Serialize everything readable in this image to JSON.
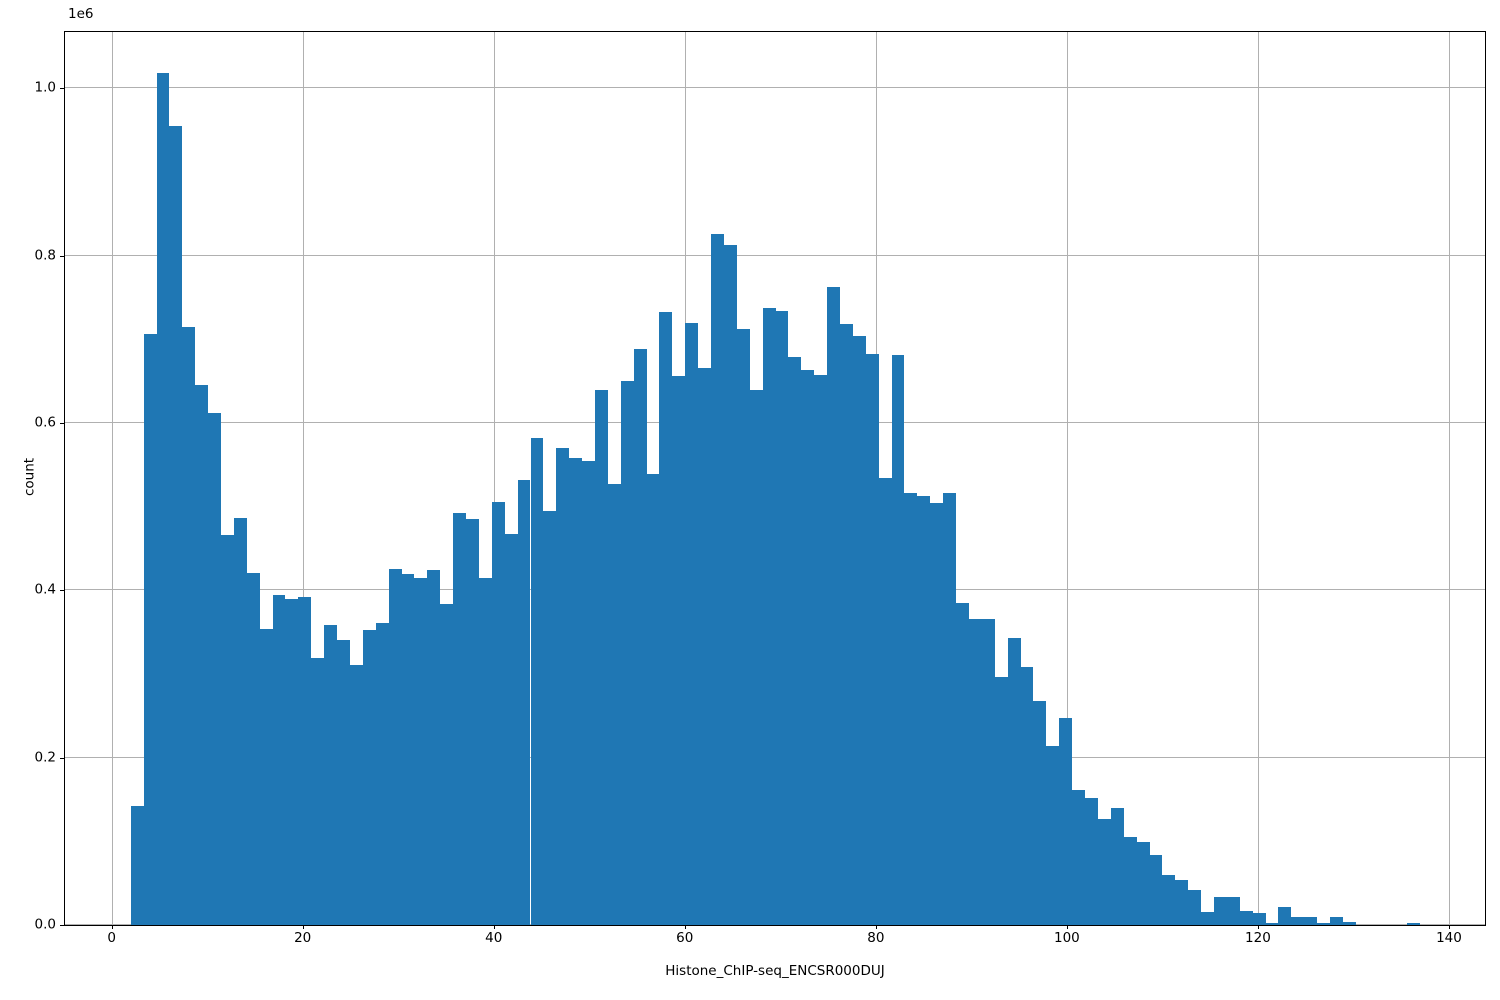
{
  "chart_data": {
    "type": "bar",
    "subtype": "histogram",
    "title": "",
    "xlabel": "Histone_ChIP-seq_ENCSR000DUJ",
    "ylabel": "count",
    "offset_text": "1e6",
    "bar_color": "#1f77b4",
    "grid_color": "#b0b0b0",
    "spine_color": "#000000",
    "background_color": "#ffffff",
    "grid": true,
    "legend": false,
    "bin_start": 2.0,
    "bin_width": 1.35,
    "xlim": [
      -4.88,
      143.77
    ],
    "ylim": [
      0,
      1067500
    ],
    "x_ticks": [
      0,
      20,
      40,
      60,
      80,
      100,
      120,
      140
    ],
    "x_tick_labels": [
      "0",
      "20",
      "40",
      "60",
      "80",
      "100",
      "120",
      "140"
    ],
    "y_ticks": [
      0,
      200000,
      400000,
      600000,
      800000,
      1000000
    ],
    "y_tick_labels": [
      "0.0",
      "0.2",
      "0.4",
      "0.6",
      "0.8",
      "1.0"
    ],
    "counts": [
      142000,
      707000,
      1019000,
      955000,
      715000,
      645000,
      612000,
      466000,
      487000,
      421000,
      354000,
      395000,
      390000,
      392000,
      319000,
      359000,
      341000,
      311000,
      353000,
      361000,
      425000,
      420000,
      415000,
      424000,
      384000,
      493000,
      485000,
      415000,
      506000,
      467000,
      532000,
      582000,
      495000,
      570000,
      558000,
      555000,
      640000,
      527000,
      650000,
      688000,
      539000,
      733000,
      656000,
      720000,
      666000,
      826000,
      813000,
      712000,
      640000,
      738000,
      734000,
      679000,
      664000,
      658000,
      763000,
      719000,
      704000,
      682000,
      534000,
      681000,
      516000,
      513000,
      505000,
      517000,
      385000,
      366000,
      366000,
      297000,
      343000,
      309000,
      268000,
      214000,
      248000,
      161000,
      152000,
      127000,
      140000,
      105000,
      99000,
      84000,
      60000,
      54000,
      42000,
      15000,
      34000,
      34000,
      17000,
      14000,
      3000,
      21000,
      10000,
      10000,
      3000,
      9000,
      4000,
      0,
      0,
      0,
      0,
      3000
    ]
  }
}
